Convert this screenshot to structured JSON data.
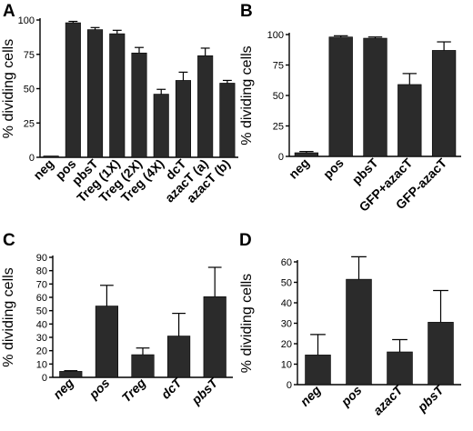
{
  "chart_data": [
    {
      "panel": "A",
      "type": "bar",
      "ylabel": "% dividing cells",
      "ylim": [
        0,
        100
      ],
      "yticks": [
        0,
        25,
        50,
        75,
        100
      ],
      "categories": [
        "neg",
        "pos",
        "pbsT",
        "Treg (1X)",
        "Treg (2X)",
        "Treg (4X)",
        "dcT",
        "azacT (a)",
        "azacT (b)"
      ],
      "values": [
        1,
        98,
        93,
        90,
        76,
        46,
        56,
        74,
        54
      ],
      "errors": [
        0.3,
        1,
        1.5,
        2.5,
        4,
        3.5,
        6,
        5.5,
        2
      ]
    },
    {
      "panel": "B",
      "type": "bar",
      "ylabel": "% dividing cells",
      "ylim": [
        0,
        100
      ],
      "yticks": [
        0,
        25,
        50,
        75,
        100
      ],
      "categories": [
        "neg",
        "pos",
        "pbsT",
        "GFP+azacT",
        "GFP-azacT"
      ],
      "values": [
        3,
        98,
        97,
        59,
        87
      ],
      "errors": [
        1,
        1,
        1,
        9,
        7
      ]
    },
    {
      "panel": "C",
      "type": "bar",
      "ylabel": "% dividing cells",
      "ylim": [
        0,
        90
      ],
      "yticks": [
        0,
        10,
        20,
        30,
        40,
        50,
        60,
        70,
        80,
        90
      ],
      "categories": [
        "neg",
        "pos",
        "Treg",
        "dcT",
        "pbsT"
      ],
      "values": [
        4.5,
        53.5,
        17,
        31,
        60.5
      ],
      "errors": [
        0.5,
        15.5,
        5,
        17,
        22
      ]
    },
    {
      "panel": "D",
      "type": "bar",
      "ylabel": "% dividing cells",
      "ylim": [
        0,
        60
      ],
      "yticks": [
        0,
        10,
        20,
        30,
        40,
        50,
        60
      ],
      "categories": [
        "neg",
        "pos",
        "azacT",
        "pbsT"
      ],
      "values": [
        14.5,
        51.5,
        16,
        30.5
      ],
      "errors": [
        10,
        11,
        6,
        15.5
      ]
    }
  ]
}
